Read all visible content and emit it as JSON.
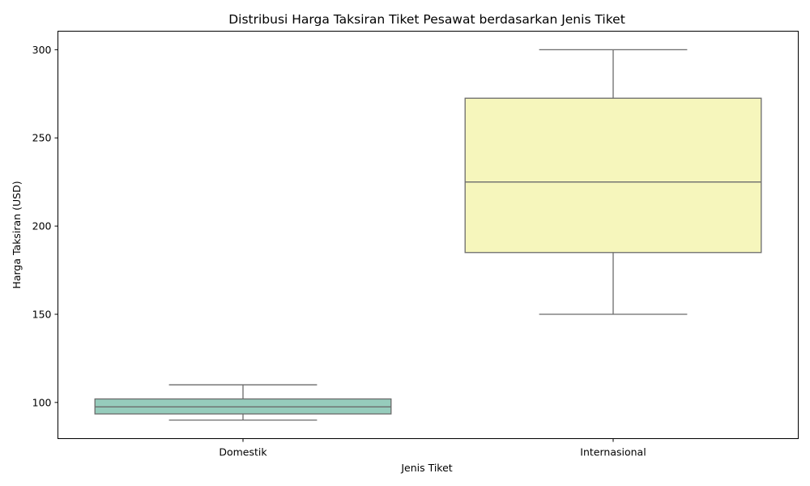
{
  "chart_data": {
    "type": "box",
    "title": "Distribusi Harga Taksiran Tiket Pesawat berdasarkan Jenis Tiket",
    "xlabel": "Jenis Tiket",
    "ylabel": "Harga Taksiran (USD)",
    "ylim": [
      79.5,
      310.5
    ],
    "yticks": [
      100,
      150,
      200,
      250,
      300
    ],
    "grid": false,
    "categories": [
      "Domestik",
      "Internasional"
    ],
    "boxes": [
      {
        "category": "Domestik",
        "min": 90,
        "q1": 93.5,
        "median": 97.5,
        "q3": 102,
        "max": 110,
        "color": "#96ccbc"
      },
      {
        "category": "Internasional",
        "min": 150,
        "q1": 185,
        "median": 225,
        "q3": 272.5,
        "max": 300,
        "color": "#f6f6bc"
      }
    ],
    "line_color": "#6b6b6b"
  }
}
